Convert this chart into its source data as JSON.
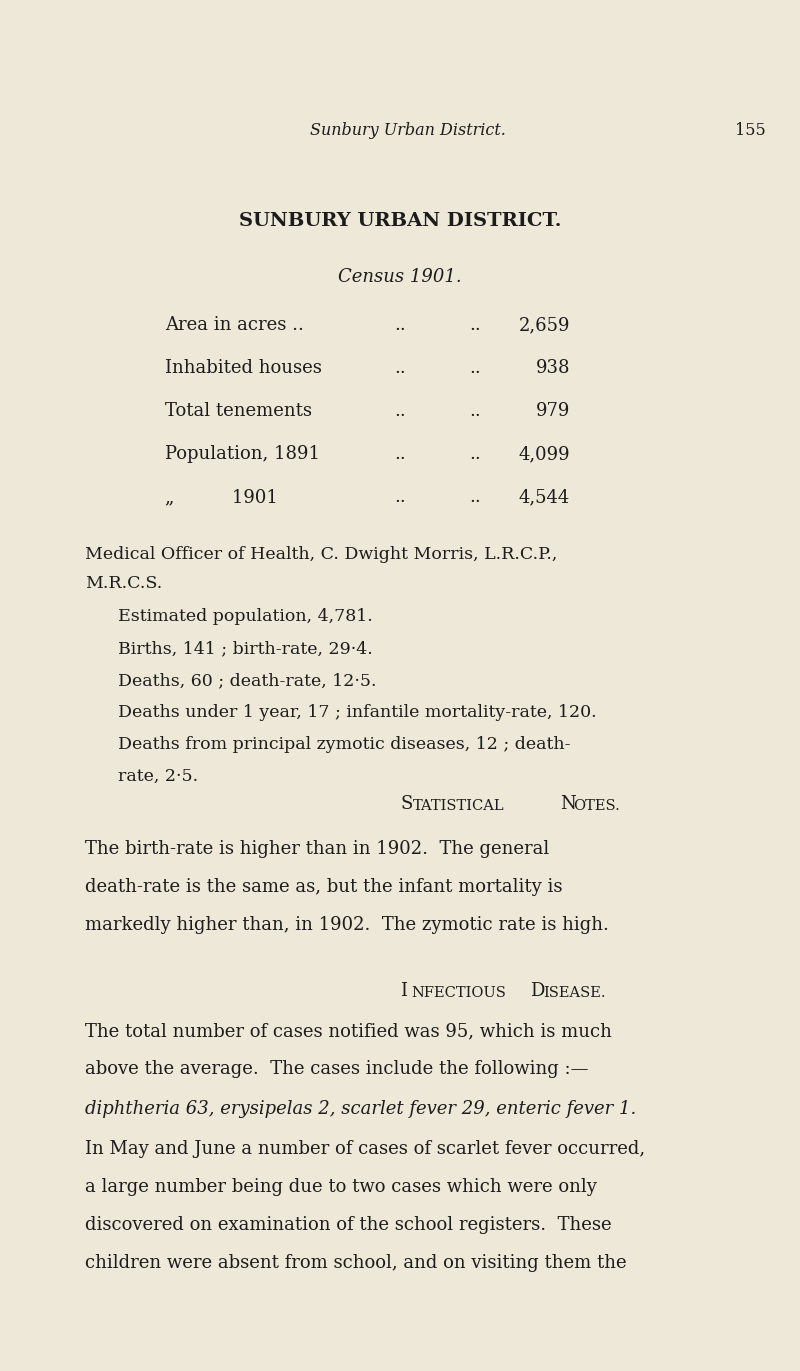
{
  "bg_color": "#ede8d8",
  "text_color": "#1c1c1c",
  "header_italic": "Sunbury Urban District.",
  "page_number": "155",
  "title": "SUNBURY URBAN DISTRICT.",
  "census_label": "Census 1901.",
  "census_rows": [
    {
      "label": "Area in acres ..",
      "mid_dots": "..        ..",
      "value": "2,659"
    },
    {
      "label": "Inhabited houses",
      "mid_dots": "..      ..",
      "value": "938"
    },
    {
      "label": "Total tenements",
      "mid_dots": "..      . .",
      "value": "979"
    },
    {
      "label": "Population, 1891",
      "mid_dots": "..      ..",
      "value": "4,099"
    },
    {
      "label": "„          1901",
      "mid_dots": "..      ..",
      "value": "4,544"
    }
  ],
  "medical_line1": "Medical Officer of Health, C. Dwight Morris, L.R.C.P.,",
  "medical_line2": "M.R.C.S.",
  "stat_lines": [
    "Estimated population, 4,781.",
    "Births, 141 ; birth-rate, 29·4.",
    "Deaths, 60 ; death-rate, 12·5.",
    "Deaths under 1 year, 17 ; infantile mortality-rate, 120.",
    "Deaths from principal zymotic diseases, 12 ; death-",
    "rate, 2·5."
  ],
  "stat_notes_heading_S": "S",
  "stat_notes_heading_REST": "TATISTICAL",
  "stat_notes_heading_N": "N",
  "stat_notes_heading_OTES": "OTES.",
  "stat_notes_heading": "Statistical Notes.",
  "stat_para_lines": [
    "The birth-rate is higher than in 1902.  The general",
    "death-rate is the same as, but the infant mortality is",
    "markedly higher than, in 1902.  The zymotic rate is high."
  ],
  "infectious_heading": "Infectious Disease.",
  "inf_para1_lines": [
    "The total number of cases notified was 95, which is much",
    "above the average.  The cases include the following :—"
  ],
  "inf_italic_line": "diphtheria 63, erysipelas 2, scarlet fever 29, enteric fever 1.",
  "inf_para2_lines": [
    "In May and June a number of cases of scarlet fever occurred,",
    "a large number being due to two cases which were only",
    "discovered on examination of the school registers.  These",
    "children were absent from school, and on visiting them the"
  ]
}
